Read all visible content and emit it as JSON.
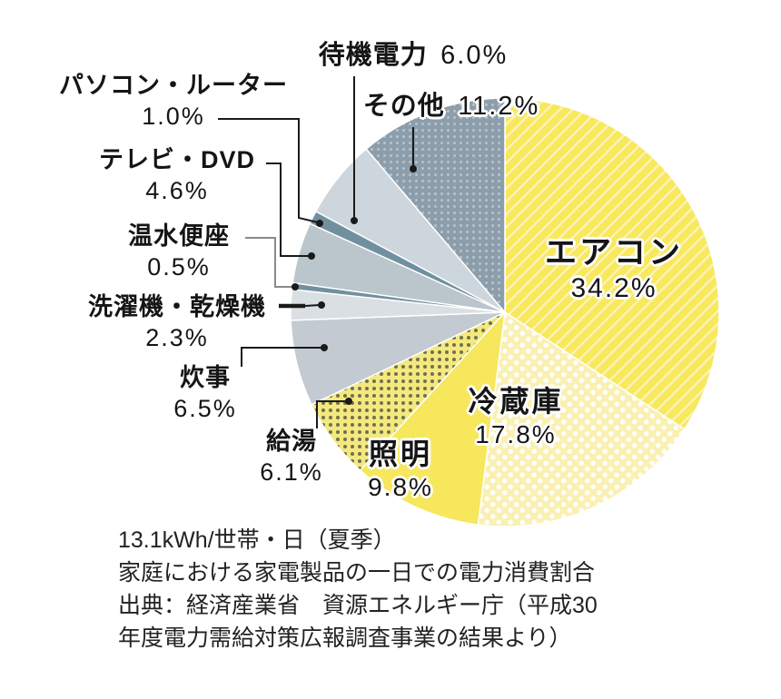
{
  "chart_data": {
    "type": "pie",
    "unit_label": "13.1kWh/世帯・日（夏季）",
    "title": "家庭における家電製品の一日での電力消費割合",
    "source_line1": "出典：経済産業省　資源エネルギー庁（平成30",
    "source_line2": "年度電力需給対策広報調査事業の結果より）",
    "start_angle_deg": 0,
    "direction": "clockwise",
    "legend_position": "outside-labels",
    "slices": [
      {
        "id": "aircon",
        "label": "エアコン",
        "value": 34.2,
        "pct": "34.2%",
        "pattern": "diagonal-stripes",
        "base_color": "#F8E85C",
        "accent_color": "#FBF3BE"
      },
      {
        "id": "fridge",
        "label": "冷蔵庫",
        "value": 17.8,
        "pct": "17.8%",
        "pattern": "dots-offset",
        "base_color": "#FAF0B2",
        "accent_color": "#FFFFFF",
        "dot_radius": 2.7,
        "dot_gap": 13
      },
      {
        "id": "lighting",
        "label": "照明",
        "value": 9.8,
        "pct": "9.8%",
        "pattern": "solid",
        "base_color": "#F6E75C"
      },
      {
        "id": "water-heating",
        "label": "給湯",
        "value": 6.1,
        "pct": "6.1%",
        "pattern": "dots-grid",
        "base_color": "#F4E87E",
        "accent_color": "#6E724E",
        "dot_radius": 2,
        "dot_gap": 8
      },
      {
        "id": "cooking",
        "label": "炊事",
        "value": 6.5,
        "pct": "6.5%",
        "pattern": "solid",
        "base_color": "#C3CAD2"
      },
      {
        "id": "washer-dryer",
        "label": "洗濯機・乾燥機",
        "value": 2.3,
        "pct": "2.3%",
        "pattern": "solid",
        "base_color": "#DADFE3"
      },
      {
        "id": "toilet-seat",
        "label": "温水便座",
        "value": 0.5,
        "pct": "0.5%",
        "pattern": "solid",
        "base_color": "#71909F"
      },
      {
        "id": "tv-dvd",
        "label": "テレビ・DVD",
        "value": 4.6,
        "pct": "4.6%",
        "pattern": "solid",
        "base_color": "#BAC5CC"
      },
      {
        "id": "pc-router",
        "label": "パソコン・ルーター",
        "value": 1.0,
        "pct": "1.0%",
        "pattern": "solid",
        "base_color": "#71909F"
      },
      {
        "id": "standby",
        "label": "待機電力",
        "value": 6.0,
        "pct": "6.0%",
        "pattern": "solid",
        "base_color": "#CDD6DC"
      },
      {
        "id": "others",
        "label": "その他",
        "value": 11.2,
        "pct": "11.2%",
        "pattern": "dots-grid",
        "base_color": "#8C9DAB",
        "accent_color": "#B8C3CB",
        "dot_radius": 1.5,
        "dot_gap": 7
      }
    ],
    "leader_line_color": "#1A1A1A",
    "leader_line_gray": "#8A8A8A"
  }
}
